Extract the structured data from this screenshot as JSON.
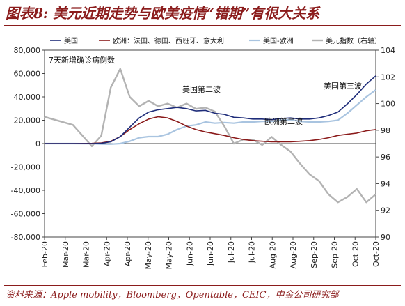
{
  "title": "图表8: 美元近期走势与欧美疫情“错期”有很大关系",
  "source": "资料来源：Apple mobility，Bloomberg，Opentable，CEIC，中金公司研究部",
  "chart_data": {
    "type": "line",
    "subtitle": "7天新增确诊病例数",
    "x_ticks": [
      "Feb-20",
      "Mar-20",
      "Mar-20",
      "Apr-20",
      "Apr-20",
      "May-20",
      "May-20",
      "Jun-20",
      "Jun-20",
      "Jul-20",
      "Jul-20",
      "Aug-20",
      "Aug-20",
      "Sep-20",
      "Sep-20",
      "Oct-20",
      "Oct-20"
    ],
    "y_left": {
      "ticks": [
        "80,000",
        "60,000",
        "40,000",
        "20,000",
        "0",
        "-20,000",
        "-40,000",
        "-60,000",
        "-80,000"
      ],
      "ylim": [
        -80000,
        80000
      ]
    },
    "y_right": {
      "ticks": [
        "104",
        "102",
        "100",
        "98",
        "96",
        "94",
        "92",
        "90"
      ],
      "ylim": [
        90,
        104
      ]
    },
    "legend": {
      "placement": "top",
      "entries": [
        "美国",
        "欧洲：法国、德国、西班牙、意大利",
        "美国-欧洲",
        "美元指数（右轴）"
      ]
    },
    "annotations": [
      "美国第二波",
      "欧洲第二波",
      "美国第三波"
    ],
    "colors": {
      "us": "#1f2d7a",
      "eu": "#8b1a1a",
      "diff": "#a9c4e0",
      "dxy": "#b3b3b3"
    },
    "series": [
      {
        "name": "美国",
        "axis": "left",
        "x": [
          0,
          3,
          5,
          6,
          7,
          8,
          9,
          10,
          11,
          12,
          13,
          14,
          15,
          16,
          17,
          18,
          19,
          20,
          21,
          22,
          23,
          24,
          25,
          26,
          27,
          28,
          29,
          30,
          31,
          32,
          33,
          34,
          35
        ],
        "values": [
          0,
          0,
          0,
          300,
          1500,
          6000,
          14000,
          22000,
          27000,
          29000,
          30000,
          31000,
          30000,
          28000,
          28500,
          26000,
          25000,
          22500,
          22000,
          21000,
          21000,
          20500,
          21500,
          22000,
          21000,
          21000,
          22000,
          24000,
          27000,
          34000,
          42000,
          51000,
          58000
        ]
      },
      {
        "name": "欧洲：法国、德国、西班牙、意大利",
        "axis": "left",
        "x": [
          0,
          3,
          5,
          6,
          7,
          8,
          9,
          10,
          11,
          12,
          13,
          14,
          15,
          16,
          17,
          18,
          19,
          20,
          21,
          22,
          23,
          24,
          25,
          26,
          27,
          28,
          29,
          30,
          31,
          32,
          33,
          34,
          35
        ],
        "values": [
          0,
          0,
          200,
          600,
          2000,
          6000,
          12000,
          17000,
          21000,
          23000,
          22000,
          19000,
          15000,
          12000,
          10000,
          8500,
          7000,
          5000,
          3500,
          2500,
          2000,
          1500,
          1500,
          1500,
          2000,
          2500,
          3500,
          5000,
          7000,
          8000,
          9000,
          11000,
          12000
        ]
      },
      {
        "name": "美国-欧洲",
        "axis": "left",
        "x": [
          0,
          3,
          5,
          6,
          7,
          8,
          9,
          10,
          11,
          12,
          13,
          14,
          15,
          16,
          17,
          18,
          19,
          20,
          21,
          22,
          23,
          24,
          25,
          26,
          27,
          28,
          29,
          30,
          31,
          32,
          33,
          34,
          35
        ],
        "values": [
          0,
          0,
          -100,
          -400,
          -500,
          0,
          2000,
          5000,
          6000,
          6000,
          8000,
          12000,
          15000,
          16000,
          18500,
          17500,
          18000,
          17500,
          18500,
          18500,
          19000,
          19000,
          20000,
          20500,
          19000,
          18500,
          18500,
          19000,
          20000,
          26000,
          33000,
          40000,
          46000
        ]
      },
      {
        "name": "美元指数（右轴）",
        "axis": "right",
        "x": [
          0,
          3,
          5,
          6,
          7,
          8,
          9,
          10,
          11,
          12,
          13,
          14,
          15,
          16,
          17,
          18,
          19,
          20,
          21,
          22,
          23,
          24,
          25,
          26,
          27,
          28,
          29,
          30,
          31,
          32,
          33,
          34,
          35
        ],
        "values": [
          99.0,
          98.4,
          96.8,
          97.6,
          101.2,
          102.6,
          100.5,
          99.8,
          100.2,
          99.8,
          100.0,
          99.7,
          100.0,
          99.6,
          99.7,
          99.4,
          98.3,
          97.0,
          97.3,
          97.3,
          96.9,
          97.5,
          96.9,
          96.4,
          95.5,
          94.7,
          94.2,
          93.2,
          92.6,
          93.0,
          93.6,
          92.6,
          93.2
        ]
      }
    ]
  }
}
